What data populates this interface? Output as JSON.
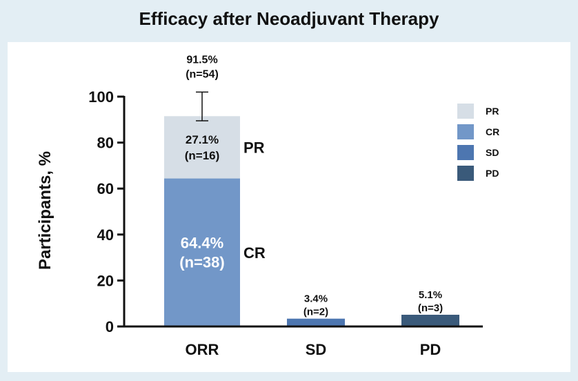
{
  "title": "Efficacy after Neoadjuvant Therapy",
  "colors": {
    "background": "#e3eef4",
    "panel": "#ffffff",
    "PR": "#d6dee6",
    "CR": "#7297c8",
    "SD": "#4d76b0",
    "PD": "#3a5a7a",
    "axis": "#111111"
  },
  "chart_data": {
    "type": "bar",
    "stacked": true,
    "title": "Efficacy after Neoadjuvant Therapy",
    "ylabel": "Participants, %",
    "xlabel": "",
    "ylim": [
      0,
      100
    ],
    "yticks": [
      0,
      20,
      40,
      60,
      80,
      100
    ],
    "categories": [
      "ORR",
      "SD",
      "PD"
    ],
    "series": [
      {
        "name": "CR",
        "values": [
          64.4,
          0,
          0
        ],
        "labels": [
          "64.4%\n(n=38)",
          "",
          ""
        ]
      },
      {
        "name": "PR",
        "values": [
          27.1,
          0,
          0
        ],
        "labels": [
          "27.1%\n(n=16)",
          "",
          ""
        ]
      },
      {
        "name": "SD",
        "values": [
          0,
          3.4,
          0
        ],
        "labels": [
          "",
          "3.4%\n(n=2)",
          ""
        ]
      },
      {
        "name": "PD",
        "values": [
          0,
          0,
          5.1
        ],
        "labels": [
          "",
          "",
          "5.1%\n(n=3)"
        ]
      }
    ],
    "totals": [
      {
        "category": "ORR",
        "value": 91.5,
        "label": "91.5%\n(n=54)",
        "error_upper": 102.0,
        "error_lower": 89.5
      }
    ],
    "segment_side_labels": [
      {
        "category": "ORR",
        "series": "PR",
        "text": "PR"
      },
      {
        "category": "ORR",
        "series": "CR",
        "text": "CR"
      }
    ],
    "legend": {
      "placement": "top-right",
      "entries": [
        "PR",
        "CR",
        "SD",
        "PD"
      ]
    },
    "grid": false
  }
}
